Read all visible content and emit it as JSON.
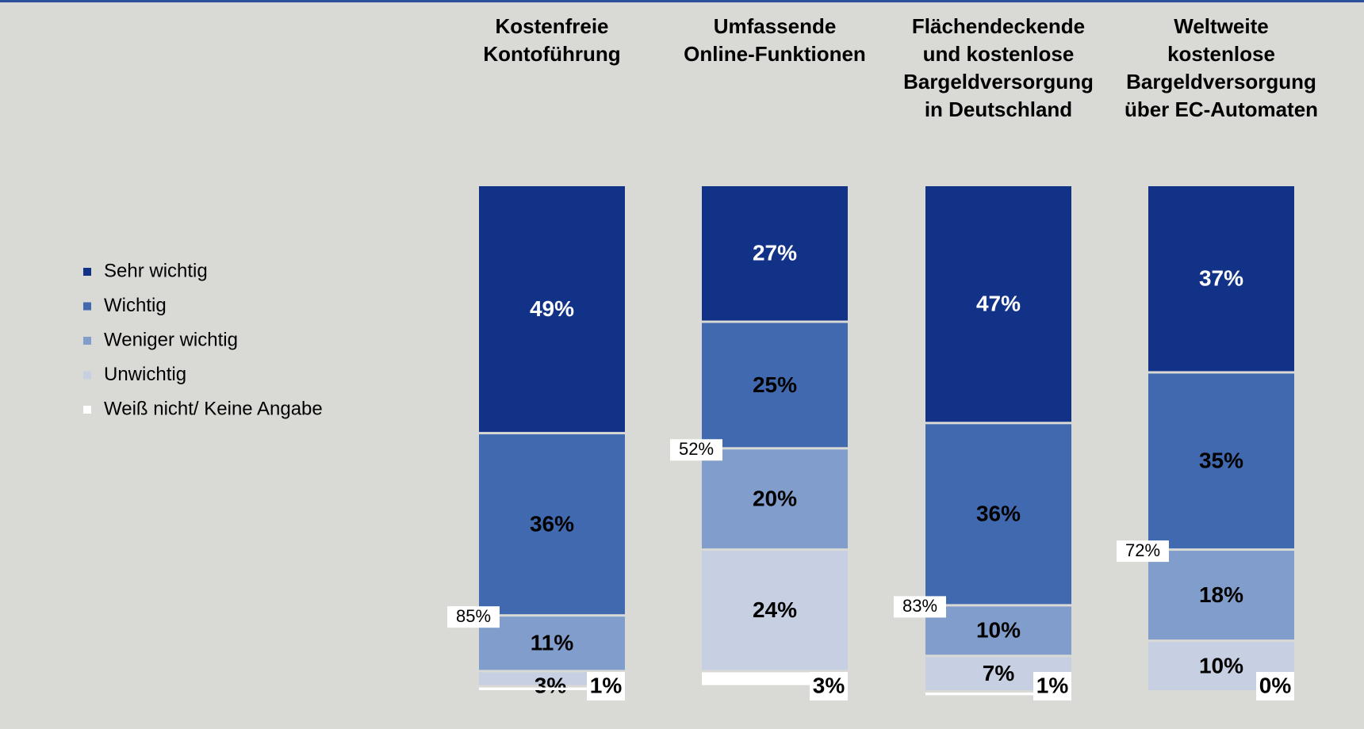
{
  "chart_data": {
    "type": "stacked-bar",
    "categories": [
      [
        "Kostenfreie",
        "Kontoführung"
      ],
      [
        "Umfassende",
        "Online-Funktionen"
      ],
      [
        "Flächendeckende",
        "und kostenlose",
        "Bargeldversorgung",
        "in Deutschland"
      ],
      [
        "Weltweite",
        "kostenlose",
        "Bargeldversorgung",
        "über EC-Automaten"
      ]
    ],
    "ylim": [
      0,
      100
    ],
    "series": [
      {
        "name": "Sehr wichtig",
        "color": "#123287",
        "values": [
          49,
          27,
          47,
          37
        ],
        "value_labels": [
          "49%",
          "27%",
          "47%",
          "37%"
        ]
      },
      {
        "name": "Wichtig",
        "color": "#4169b0",
        "values": [
          36,
          25,
          36,
          35
        ],
        "value_labels": [
          "36%",
          "25%",
          "36%",
          "35%"
        ]
      },
      {
        "name": "Weniger wichtig",
        "color": "#819dcc",
        "values": [
          11,
          20,
          10,
          18
        ],
        "value_labels": [
          "11%",
          "20%",
          "10%",
          "18%"
        ]
      },
      {
        "name": "Unwichtig",
        "color": "#c7cfe2",
        "values": [
          3,
          24,
          7,
          10
        ],
        "value_labels": [
          "3%",
          "24%",
          "7%",
          "10%"
        ]
      },
      {
        "name": "Weiß nicht/ Keine Angabe",
        "color": "#ffffff",
        "values": [
          1,
          3,
          1,
          0
        ],
        "value_labels": [
          "1%",
          "3%",
          "1%",
          "0%"
        ]
      }
    ],
    "annotations": [
      "85%",
      "52%",
      "83%",
      "72%"
    ],
    "legend": "left"
  }
}
